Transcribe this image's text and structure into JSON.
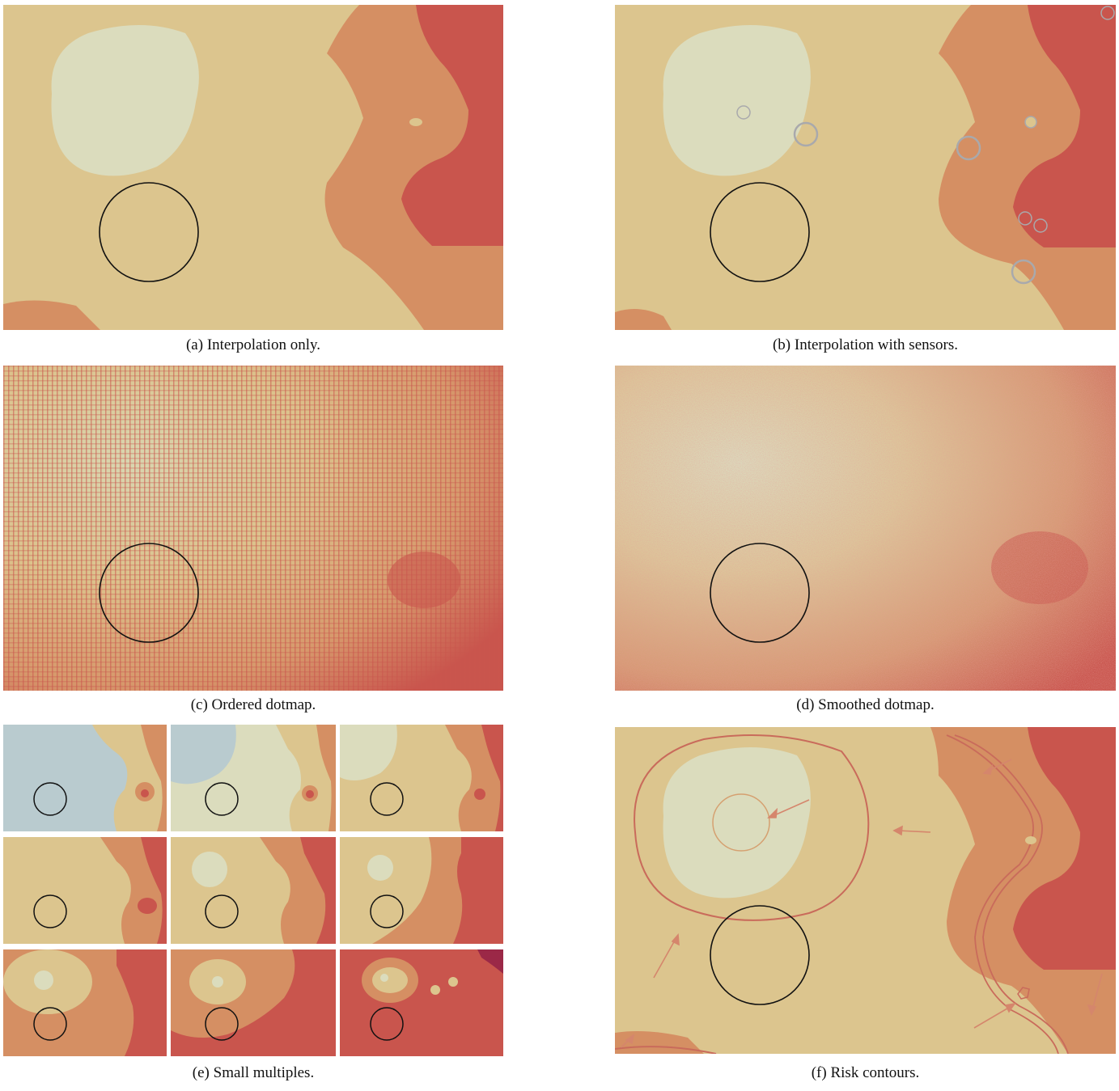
{
  "figure": {
    "panels": [
      {
        "id": "a",
        "label": "(a)",
        "caption": "Interpolation only."
      },
      {
        "id": "b",
        "label": "(b)",
        "caption": "Interpolation with sensors."
      },
      {
        "id": "c",
        "label": "(c)",
        "caption": "Ordered dotmap."
      },
      {
        "id": "d",
        "label": "(d)",
        "caption": "Smoothed dotmap."
      },
      {
        "id": "e",
        "label": "(e)",
        "caption": "Small multiples."
      },
      {
        "id": "f",
        "label": "(f)",
        "caption": "Risk contours."
      }
    ]
  },
  "colors": {
    "light": "#dbdcbd",
    "base": "#dcc58e",
    "mid": "#d58f63",
    "high": "#c9554d",
    "veryhigh": "#9b2847",
    "cool": "#b9cbcf",
    "ring": "#111111",
    "sensor": "#a9a9ac",
    "contour": "#c96b5b"
  }
}
